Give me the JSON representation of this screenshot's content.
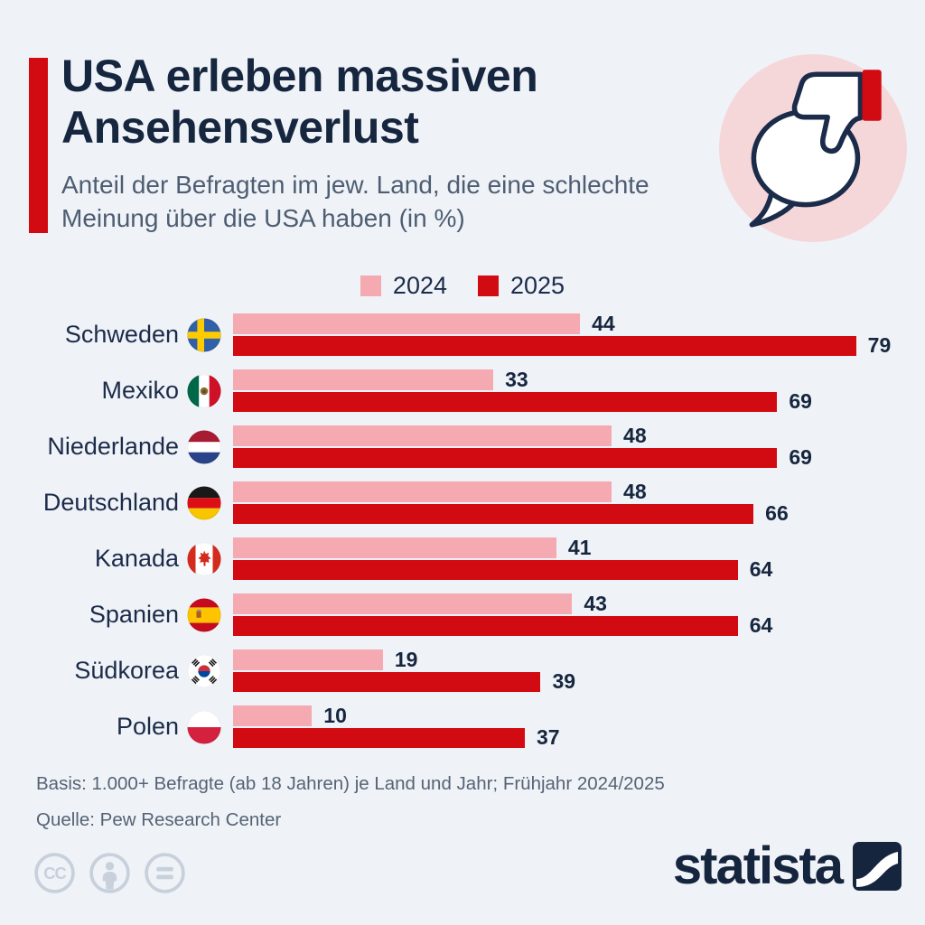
{
  "header": {
    "title": "USA erleben massiven Ansehensverlust",
    "subtitle": "Anteil der Befragten im jew. Land, die eine schlechte Meinung über die USA haben (in %)",
    "accent_color": "#d20a11"
  },
  "legend": {
    "items": [
      {
        "label": "2024",
        "color": "#f5a9b1"
      },
      {
        "label": "2025",
        "color": "#d20a11"
      }
    ]
  },
  "chart_data": {
    "type": "bar",
    "orientation": "horizontal",
    "title": "USA erleben massiven Ansehensverlust",
    "categories": [
      "Schweden",
      "Mexiko",
      "Niederlande",
      "Deutschland",
      "Kanada",
      "Spanien",
      "Südkorea",
      "Polen"
    ],
    "flags": [
      "sweden",
      "mexico",
      "netherlands",
      "germany",
      "canada",
      "spain",
      "south-korea",
      "poland"
    ],
    "series": [
      {
        "name": "2024",
        "color": "#f5a9b1",
        "values": [
          44,
          33,
          48,
          48,
          41,
          43,
          19,
          10
        ]
      },
      {
        "name": "2025",
        "color": "#d20a11",
        "values": [
          79,
          69,
          69,
          66,
          64,
          64,
          39,
          37
        ]
      }
    ],
    "xlim": [
      0,
      79
    ],
    "value_labels": true,
    "grid": false,
    "legend_position": "top-center",
    "unit": "%"
  },
  "footer": {
    "basis": "Basis: 1.000+ Befragte (ab 18 Jahren) je Land und Jahr; Frühjahr 2024/2025",
    "source": "Quelle: Pew Research Center"
  },
  "branding": {
    "logo_text": "statista",
    "license_icons": [
      "cc-icon",
      "attribution-person-icon",
      "equals-icon"
    ]
  }
}
